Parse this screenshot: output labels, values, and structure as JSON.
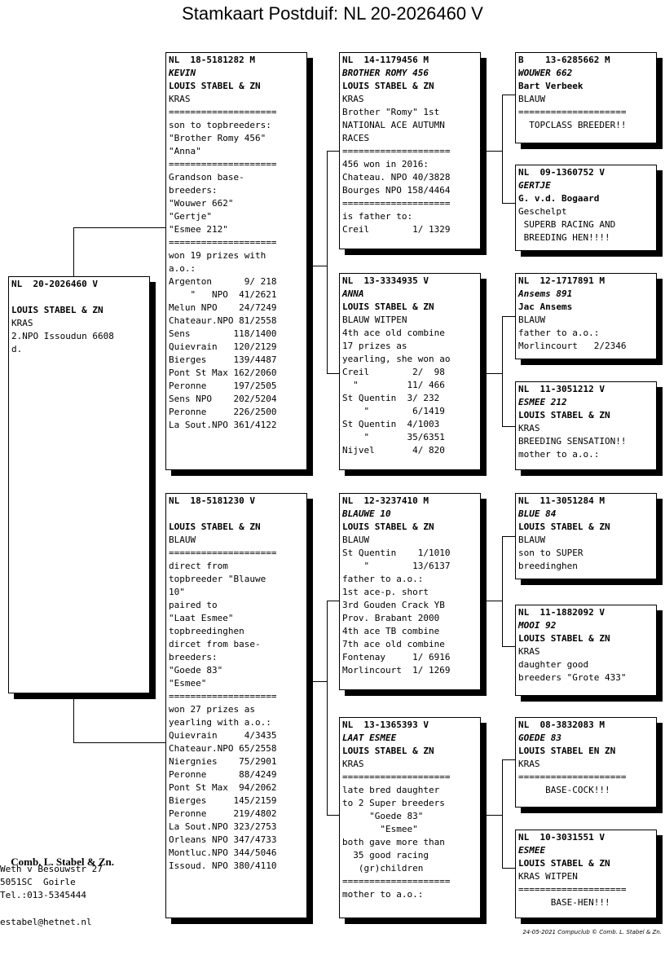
{
  "title": "Stamkaart Postduif: NL  20-2026460 V",
  "cards": {
    "root": {
      "ring": "NL  20-2026460 V",
      "name": "",
      "owner": "LOUIS STABEL & ZN",
      "lines": [
        "KRAS",
        "2.NPO Issoudun 6608",
        "d."
      ]
    },
    "father": {
      "ring": "NL  18-5181282 M",
      "name": "KEVIN",
      "owner": "LOUIS STABEL & ZN",
      "lines": [
        "KRAS",
        "====================",
        "son to topbreeders:",
        "\"Brother Romy 456\"",
        "\"Anna\"",
        "====================",
        "Grandson base-",
        "breeders:",
        "\"Wouwer 662\"",
        "\"Gertje\"",
        "\"Esmee 212\"",
        "====================",
        "won 19 prizes with",
        "a.o.:",
        "Argenton      9/ 218",
        "    \"   NPO  41/2621",
        "Melun NPO    24/7249",
        "Chateaur.NPO 81/2558",
        "Sens        118/1400",
        "Quievrain   120/2129",
        "Bierges     139/4487",
        "Pont St Max 162/2060",
        "Peronne     197/2505",
        "Sens NPO    202/5204",
        "Peronne     226/2500",
        "La Sout.NPO 361/4122"
      ]
    },
    "mother": {
      "ring": "NL  18-5181230 V",
      "name": "",
      "owner": "LOUIS STABEL & ZN",
      "lines": [
        "BLAUW",
        "====================",
        "direct from",
        "topbreeder \"Blauwe",
        "10\"",
        "paired to",
        "\"Laat Esmee\"",
        "topbreedinghen",
        "dircet from base-",
        "breeders:",
        "\"Goede 83\"",
        "\"Esmee\"",
        "====================",
        "won 27 prizes as",
        "yearling with a.o.:",
        "Quievrain     4/3435",
        "Chateaur.NPO 65/2558",
        "Niergnies    75/2901",
        "Peronne      88/4249",
        "Pont St Max  94/2062",
        "Bierges     145/2159",
        "Peronne     219/4802",
        "La Sout.NPO 323/2753",
        "Orleans NPO 347/4733",
        "Montluc.NPO 344/5046",
        "Issoud. NPO 380/4110"
      ]
    },
    "ff": {
      "ring": "NL  14-1179456 M",
      "name": "BROTHER ROMY 456",
      "owner": "LOUIS STABEL & ZN",
      "lines": [
        "KRAS",
        "Brother \"Romy\" 1st",
        "NATIONAL ACE AUTUMN",
        "RACES",
        "====================",
        "456 won in 2016:",
        "Chateau. NPO 40/3828",
        "Bourges NPO 158/4464",
        "====================",
        "is father to:",
        "Creil        1/ 1329"
      ]
    },
    "fm": {
      "ring": "NL  13-3334935 V",
      "name": "ANNA",
      "owner": "LOUIS STABEL & ZN",
      "lines": [
        "BLAUW WITPEN",
        "4th ace old combine",
        "17 prizes as",
        "yearling, she won ao",
        "Creil        2/  98",
        "  \"         11/ 466",
        "St Quentin  3/ 232",
        "    \"        6/1419",
        "St Quentin  4/1003",
        "    \"       35/6351",
        "Nijvel       4/ 820"
      ]
    },
    "mf": {
      "ring": "NL  12-3237410 M",
      "name": "BLAUWE 10",
      "owner": "LOUIS STABEL & ZN",
      "lines": [
        "BLAUW",
        "St Quentin    1/1010",
        "    \"        13/6137",
        "father to a.o.:",
        "1st ace-p. short",
        "3rd Gouden Crack YB",
        "Prov. Brabant 2000",
        "4th ace TB combine",
        "7th ace old combine",
        "Fontenay     1/ 6916",
        "Morlincourt  1/ 1269"
      ]
    },
    "mm": {
      "ring": "NL  13-1365393 V",
      "name": "LAAT ESMEE",
      "owner": "LOUIS STABEL & ZN",
      "lines": [
        "KRAS",
        "====================",
        "late bred daughter",
        "to 2 Super breeders",
        "     \"Goede 83\"",
        "       \"Esmee\"",
        "both gave more than",
        "  35 good racing",
        "   (gr)children",
        "====================",
        "mother to a.o.:"
      ]
    },
    "fff": {
      "ring": "B    13-6285662 M",
      "name": "WOUWER 662",
      "owner": "Bart Verbeek",
      "lines": [
        "BLAUW",
        "====================",
        "  TOPCLASS BREEDER!!"
      ]
    },
    "ffm": {
      "ring": "NL  09-1360752 V",
      "name": "GERTJE",
      "owner": "G. v.d. Bogaard",
      "lines": [
        "Geschelpt",
        " SUPERB RACING AND",
        " BREEDING HEN!!!!"
      ]
    },
    "fmf": {
      "ring": "NL  12-1717891 M",
      "name": "Ansems 891",
      "owner": "Jac Ansems",
      "lines": [
        "BLAUW",
        "father to a.o.:",
        "Morlincourt   2/2346"
      ]
    },
    "fmm": {
      "ring": "NL  11-3051212 V",
      "name": "ESMEE 212",
      "owner": "LOUIS STABEL & ZN",
      "lines": [
        "KRAS",
        "BREEDING SENSATION!!",
        "mother to a.o.:"
      ]
    },
    "mff": {
      "ring": "NL  11-3051284 M",
      "name": "BLUE 84",
      "owner": "LOUIS STABEL & ZN",
      "lines": [
        "BLAUW",
        "son to SUPER",
        "breedinghen"
      ]
    },
    "mfm": {
      "ring": "NL  11-1882092 V",
      "name": "MOOI 92",
      "owner": "LOUIS STABEL & ZN",
      "lines": [
        "KRAS",
        "daughter good",
        "breeders \"Grote 433\""
      ]
    },
    "mmf": {
      "ring": "NL  08-3832083 M",
      "name": "GOEDE 83",
      "owner": "LOUIS STABEL EN ZN",
      "lines": [
        "KRAS",
        "====================",
        "     BASE-COCK!!!"
      ]
    },
    "mmm": {
      "ring": "NL  10-3031551 V",
      "name": "ESMEE",
      "owner": "LOUIS STABEL & ZN",
      "lines": [
        "KRAS WITPEN",
        "====================",
        "      BASE-HEN!!!"
      ]
    }
  },
  "address": {
    "firm": "Comb. L. Stabel & Zn.",
    "street": "Weth v Besouwstr 27",
    "city": "5051SC  Goirle",
    "tel": "Tel.:013-5345444",
    "email": "estabel@hetnet.nl"
  },
  "footer": "24-05-2021   Compuclub © Comb. L. Stabel & Zn."
}
